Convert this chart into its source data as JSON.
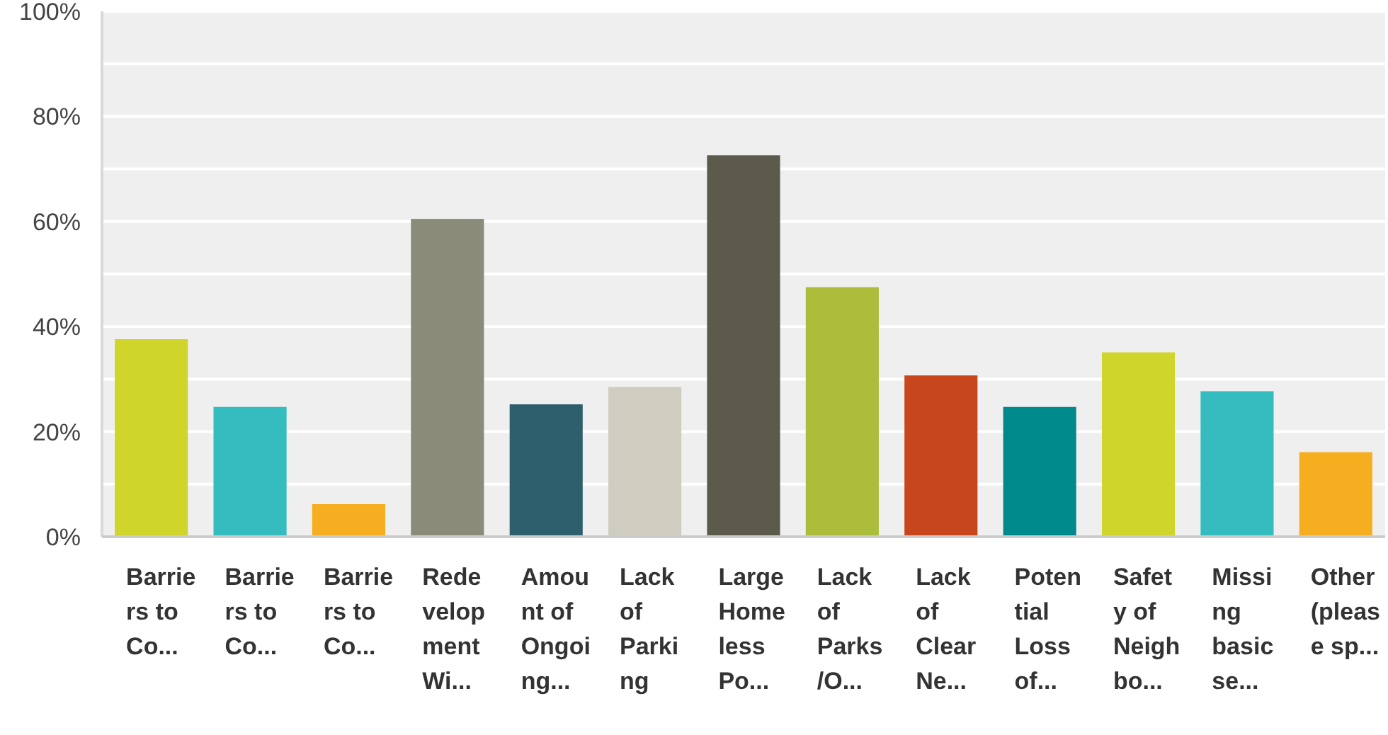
{
  "chart_data": {
    "type": "bar",
    "categories": [
      "Barriers to Co...",
      "Barriers to Co...",
      "Barriers to Co...",
      "Redevelopment Wi...",
      "Amount of Ongoing...",
      "Lack of Parking",
      "Large Homeless Po...",
      "Lack of Parks /O...",
      "Lack of Clear Ne...",
      "Potential Loss of...",
      "Safety of Neighbo...",
      "Missing basic se...",
      "Other (please sp..."
    ],
    "values": [
      37.6,
      24.7,
      6.2,
      60.5,
      25.2,
      28.5,
      72.6,
      47.5,
      30.7,
      24.7,
      35.1,
      27.7,
      16.1
    ],
    "colors": [
      "#cfd52a",
      "#34bcbf",
      "#f6ae21",
      "#8b8b79",
      "#2d5f6c",
      "#cecdbf",
      "#5c5a4a",
      "#abbd3a",
      "#c8461d",
      "#00898a",
      "#cfd52a",
      "#34bcbf",
      "#f6ae21"
    ],
    "ylim": [
      0,
      100
    ],
    "yticks": [
      {
        "value": 0,
        "label": "0%"
      },
      {
        "value": 10,
        "label": null
      },
      {
        "value": 20,
        "label": "20%"
      },
      {
        "value": 30,
        "label": null
      },
      {
        "value": 40,
        "label": "40%"
      },
      {
        "value": 50,
        "label": null
      },
      {
        "value": 60,
        "label": "60%"
      },
      {
        "value": 70,
        "label": null
      },
      {
        "value": 80,
        "label": "80%"
      },
      {
        "value": 90,
        "label": null
      },
      {
        "value": 100,
        "label": "100%"
      }
    ],
    "grid": true
  }
}
